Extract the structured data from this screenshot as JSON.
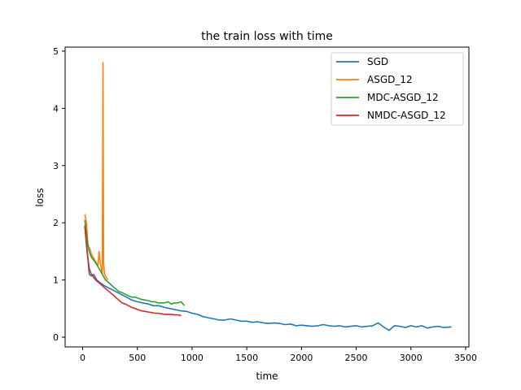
{
  "chart_data": {
    "type": "line",
    "title": "the train loss with time",
    "xlabel": "time",
    "ylabel": "loss",
    "xlim": [
      -160,
      3530
    ],
    "ylim": [
      -0.17,
      5.07
    ],
    "xticks": [
      0,
      500,
      1000,
      1500,
      2000,
      2500,
      3000,
      3500
    ],
    "yticks": [
      0,
      1,
      2,
      3,
      4,
      5
    ],
    "legend_position": "top-right",
    "series": [
      {
        "name": "SGD",
        "color": "#1f77b4",
        "x": [
          20,
          40,
          60,
          80,
          100,
          130,
          160,
          200,
          250,
          300,
          350,
          400,
          450,
          500,
          550,
          600,
          650,
          700,
          750,
          800,
          850,
          900,
          950,
          1000,
          1050,
          1100,
          1150,
          1200,
          1250,
          1300,
          1350,
          1400,
          1450,
          1500,
          1550,
          1600,
          1650,
          1700,
          1750,
          1800,
          1850,
          1900,
          1950,
          2000,
          2050,
          2100,
          2150,
          2200,
          2250,
          2300,
          2350,
          2400,
          2450,
          2500,
          2550,
          2600,
          2650,
          2700,
          2750,
          2800,
          2850,
          2900,
          2950,
          3000,
          3050,
          3100,
          3150,
          3200,
          3250,
          3300,
          3370
        ],
        "y": [
          1.95,
          1.55,
          1.1,
          1.07,
          1.1,
          1.0,
          0.95,
          0.9,
          0.85,
          0.8,
          0.75,
          0.7,
          0.65,
          0.62,
          0.6,
          0.58,
          0.55,
          0.55,
          0.52,
          0.5,
          0.48,
          0.46,
          0.45,
          0.42,
          0.4,
          0.36,
          0.34,
          0.32,
          0.3,
          0.3,
          0.32,
          0.3,
          0.28,
          0.28,
          0.26,
          0.27,
          0.25,
          0.24,
          0.25,
          0.24,
          0.22,
          0.23,
          0.2,
          0.21,
          0.2,
          0.19,
          0.2,
          0.22,
          0.2,
          0.19,
          0.2,
          0.18,
          0.19,
          0.2,
          0.18,
          0.19,
          0.2,
          0.25,
          0.18,
          0.12,
          0.2,
          0.19,
          0.17,
          0.2,
          0.18,
          0.2,
          0.16,
          0.18,
          0.19,
          0.17,
          0.18
        ]
      },
      {
        "name": "ASGD_12",
        "color": "#ff7f0e",
        "x": [
          20,
          35,
          50,
          65,
          80,
          95,
          110,
          125,
          140,
          150,
          160,
          170,
          180,
          186,
          192,
          200,
          215,
          230
        ],
        "y": [
          2.15,
          2.0,
          1.6,
          1.55,
          1.45,
          1.4,
          1.35,
          1.3,
          1.25,
          1.5,
          1.3,
          1.2,
          1.1,
          4.8,
          1.3,
          1.1,
          1.05,
          1.0
        ]
      },
      {
        "name": "MDC-ASGD_12",
        "color": "#2ca02c",
        "x": [
          20,
          40,
          60,
          80,
          100,
          120,
          150,
          180,
          210,
          240,
          270,
          300,
          330,
          360,
          390,
          420,
          450,
          480,
          510,
          540,
          570,
          600,
          630,
          660,
          690,
          720,
          750,
          780,
          810,
          840,
          870,
          900,
          930
        ],
        "y": [
          2.05,
          1.7,
          1.5,
          1.4,
          1.35,
          1.3,
          1.2,
          1.1,
          1.0,
          0.95,
          0.9,
          0.85,
          0.8,
          0.78,
          0.75,
          0.72,
          0.7,
          0.7,
          0.68,
          0.66,
          0.65,
          0.64,
          0.62,
          0.62,
          0.6,
          0.6,
          0.6,
          0.62,
          0.58,
          0.6,
          0.6,
          0.62,
          0.55
        ]
      },
      {
        "name": "NMDC-ASGD_12",
        "color": "#d62728",
        "x": [
          20,
          40,
          60,
          80,
          100,
          120,
          150,
          180,
          210,
          240,
          270,
          300,
          330,
          360,
          390,
          420,
          450,
          480,
          510,
          540,
          570,
          600,
          630,
          660,
          690,
          720,
          750,
          780,
          810,
          840,
          870,
          900
        ],
        "y": [
          1.95,
          1.5,
          1.2,
          1.1,
          1.05,
          1.0,
          0.95,
          0.9,
          0.85,
          0.8,
          0.75,
          0.7,
          0.65,
          0.6,
          0.58,
          0.55,
          0.52,
          0.5,
          0.48,
          0.46,
          0.45,
          0.44,
          0.43,
          0.42,
          0.42,
          0.41,
          0.4,
          0.4,
          0.4,
          0.39,
          0.39,
          0.38
        ]
      }
    ]
  }
}
